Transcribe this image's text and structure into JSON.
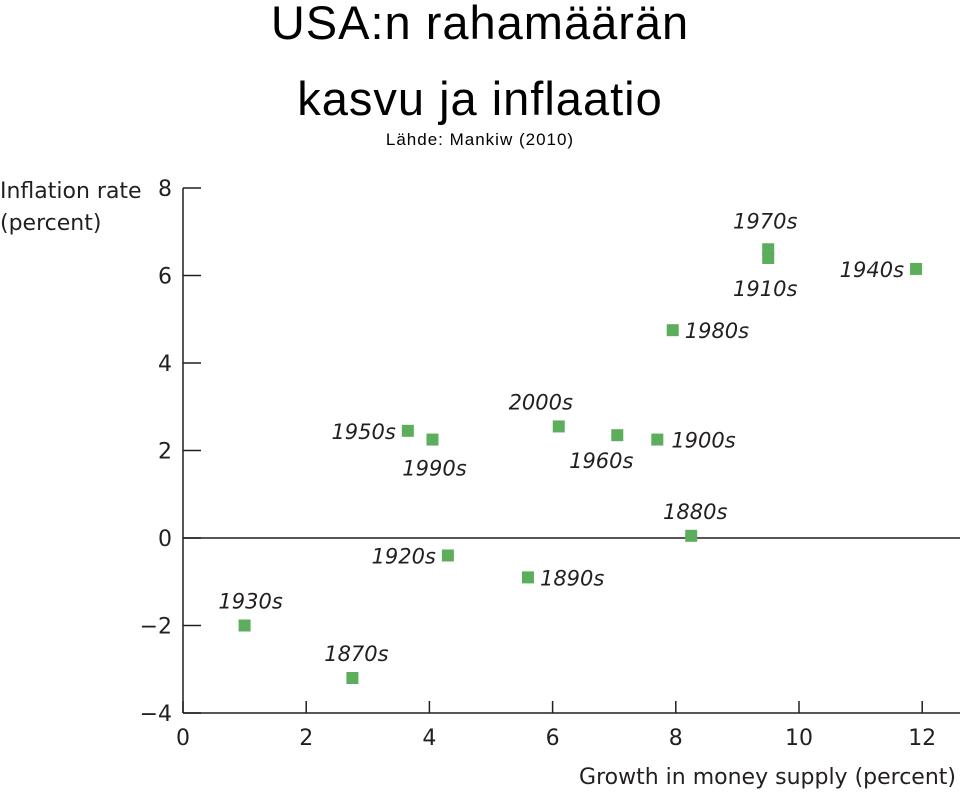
{
  "title": {
    "line1": "USA:n rahamäärän",
    "line2": "kasvu ja inflaatio"
  },
  "source": "Lähde: Mankiw (2010)",
  "chart_data": {
    "type": "scatter",
    "title": "",
    "xlabel": "Growth in money supply (percent)",
    "ylabel_line1": "Inflation rate",
    "ylabel_line2": "(percent)",
    "xlim": [
      0,
      12.5
    ],
    "ylim": [
      -4,
      8
    ],
    "xticks": [
      0,
      2,
      4,
      6,
      8,
      10,
      12
    ],
    "yticks": [
      -4,
      -2,
      0,
      2,
      4,
      6,
      8
    ],
    "grid": false,
    "marker_color": "#5cad5c",
    "points": [
      {
        "label": "1870s",
        "x": 2.75,
        "y": -3.2
      },
      {
        "label": "1880s",
        "x": 8.25,
        "y": 0.05
      },
      {
        "label": "1890s",
        "x": 5.6,
        "y": -0.9
      },
      {
        "label": "1900s",
        "x": 7.7,
        "y": 2.25
      },
      {
        "label": "1910s",
        "x": 9.5,
        "y": 6.4
      },
      {
        "label": "1920s",
        "x": 4.3,
        "y": -0.4
      },
      {
        "label": "1930s",
        "x": 1.0,
        "y": -2.0
      },
      {
        "label": "1940s",
        "x": 11.9,
        "y": 6.15
      },
      {
        "label": "1950s",
        "x": 3.65,
        "y": 2.45
      },
      {
        "label": "1960s",
        "x": 7.05,
        "y": 2.35
      },
      {
        "label": "1970s",
        "x": 9.5,
        "y": 6.6
      },
      {
        "label": "1980s",
        "x": 7.95,
        "y": 4.75
      },
      {
        "label": "1990s",
        "x": 4.05,
        "y": 2.25
      },
      {
        "label": "2000s",
        "x": 6.1,
        "y": 2.55
      }
    ]
  }
}
